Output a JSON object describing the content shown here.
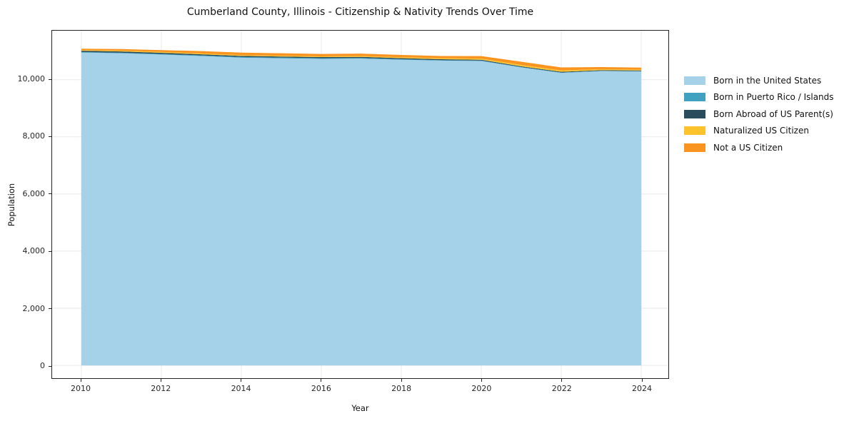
{
  "figure": {
    "title": "Cumberland County, Illinois - Citizenship & Nativity Trends Over Time"
  },
  "axes": {
    "xlabel": "Year",
    "ylabel": "Population",
    "xtick_values": [
      2010,
      2012,
      2014,
      2016,
      2018,
      2020,
      2022,
      2024
    ],
    "xtick_labels": [
      "2010",
      "2012",
      "2014",
      "2016",
      "2018",
      "2020",
      "2022",
      "2024"
    ],
    "ytick_values": [
      0,
      2000,
      4000,
      6000,
      8000,
      10000
    ],
    "ytick_labels": [
      "0",
      "2,000",
      "4,000",
      "6,000",
      "8,000",
      "10,000"
    ]
  },
  "colors": {
    "born_us": "#a5d2e8",
    "born_pr_islands": "#41a1c1",
    "born_abroad": "#2a4d5e",
    "naturalized": "#fcc32d",
    "not_citizen": "#f8941f",
    "grid": "#e9e9e9",
    "spine": "#222222",
    "text": "#111111"
  },
  "chart_data": {
    "type": "area",
    "stacked": true,
    "title": "Cumberland County, Illinois - Citizenship & Nativity Trends Over Time",
    "xlabel": "Year",
    "ylabel": "Population",
    "x": [
      2010,
      2011,
      2012,
      2013,
      2014,
      2015,
      2016,
      2017,
      2018,
      2019,
      2020,
      2021,
      2022,
      2023,
      2024
    ],
    "series": [
      {
        "name": "Born in the United States",
        "color": "#a5d2e8",
        "values": [
          10950,
          10925,
          10880,
          10830,
          10770,
          10750,
          10730,
          10740,
          10700,
          10670,
          10655,
          10430,
          10240,
          10300,
          10290
        ]
      },
      {
        "name": "Born in Puerto Rico / Islands",
        "color": "#41a1c1",
        "values": [
          20,
          20,
          20,
          20,
          25,
          25,
          25,
          20,
          20,
          15,
          15,
          12,
          12,
          12,
          12
        ]
      },
      {
        "name": "Born Abroad of US Parent(s)",
        "color": "#2a4d5e",
        "values": [
          45,
          45,
          42,
          40,
          38,
          37,
          36,
          38,
          35,
          32,
          30,
          25,
          25,
          22,
          22
        ]
      },
      {
        "name": "Naturalized US Citizen",
        "color": "#fcc32d",
        "values": [
          25,
          28,
          30,
          30,
          28,
          27,
          26,
          30,
          32,
          35,
          40,
          50,
          48,
          35,
          30
        ]
      },
      {
        "name": "Not a US Citizen",
        "color": "#f8941f",
        "values": [
          48,
          55,
          65,
          80,
          88,
          87,
          85,
          85,
          80,
          80,
          85,
          112,
          105,
          75,
          70
        ]
      }
    ],
    "totals_estimated": [
      11088,
      11073,
      11037,
      11000,
      10949,
      10926,
      10902,
      10913,
      10867,
      10832,
      10825,
      10629,
      10430,
      10444,
      10424
    ],
    "xlim": [
      2009.27,
      2024.68
    ],
    "ylim": [
      -450,
      11715
    ],
    "grid": true,
    "legend_position": "center right, outside axes"
  }
}
